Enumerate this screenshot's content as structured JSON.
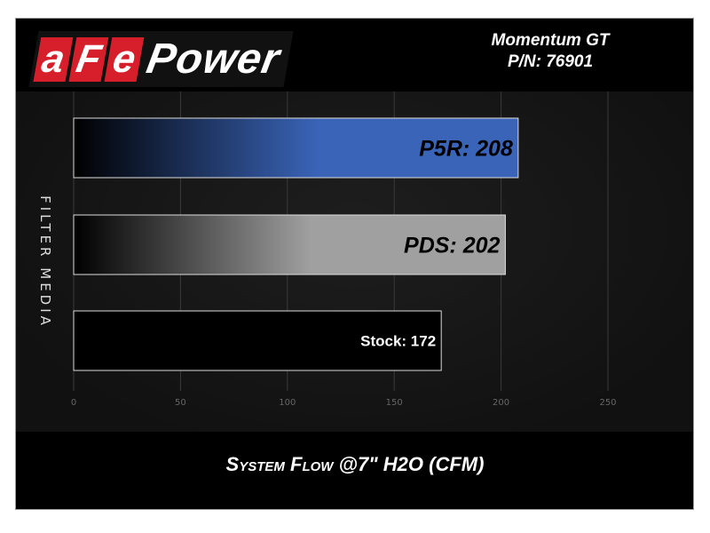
{
  "logo": {
    "boxes": [
      "a",
      "F",
      "e"
    ],
    "text": "Power"
  },
  "header": {
    "model": "Momentum GT",
    "part_number": "P/N: 76901"
  },
  "chart_data": {
    "type": "bar",
    "orientation": "horizontal",
    "categories": [
      "P5R",
      "PDS",
      "Stock"
    ],
    "values": [
      208,
      202,
      172
    ],
    "data_labels": [
      "P5R: 208",
      "PDS: 202",
      "Stock: 172"
    ],
    "colors": [
      "#3a64b8",
      "#a0a0a0",
      "#000000"
    ],
    "xlabel": "System Flow @7\" H2O (CFM)",
    "ylabel": "FILTER MEDIA",
    "xlim": [
      0,
      250
    ],
    "xticks": [
      0,
      50,
      100,
      150,
      200,
      250
    ],
    "grid": true
  }
}
